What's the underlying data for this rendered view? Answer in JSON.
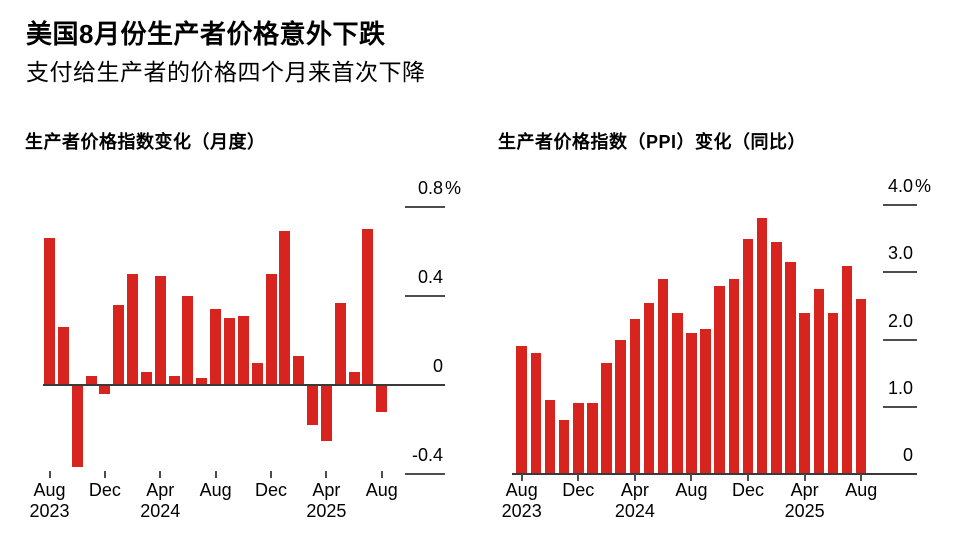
{
  "page": {
    "title": "美国8月份生产者价格意外下跌",
    "subtitle": "支付给生产者的价格四个月来首次下降"
  },
  "colors": {
    "bar_red": "#d8241f",
    "axis": "#3a3a3a",
    "grid": "#4d4d4d",
    "text": "#000000",
    "background": "#ffffff"
  },
  "chart_data": [
    {
      "type": "bar",
      "title": "生产者价格指数变化（月度）",
      "unit": "%",
      "categories": [
        "Aug 2023",
        "Sep 2023",
        "Oct 2023",
        "Nov 2023",
        "Dec 2023",
        "Jan 2024",
        "Feb 2024",
        "Mar 2024",
        "Apr 2024",
        "May 2024",
        "Jun 2024",
        "Jul 2024",
        "Aug 2024",
        "Sep 2024",
        "Oct 2024",
        "Nov 2024",
        "Dec 2024",
        "Jan 2025",
        "Feb 2025",
        "Mar 2025",
        "Apr 2025",
        "May 2025",
        "Jun 2025",
        "Jul 2025",
        "Aug 2025"
      ],
      "values": [
        0.66,
        0.26,
        -0.37,
        0.04,
        -0.04,
        0.36,
        0.5,
        0.06,
        0.49,
        0.04,
        0.4,
        0.03,
        0.34,
        0.3,
        0.31,
        0.1,
        0.5,
        0.69,
        0.13,
        -0.18,
        -0.25,
        0.37,
        0.06,
        0.7,
        -0.12
      ],
      "ylim": [
        -0.4,
        0.8
      ],
      "grid": "right-side-dashes",
      "legend": "none",
      "bar_color": "#d8241f",
      "yticks": [
        {
          "label": "0.8%",
          "value": 0.8
        },
        {
          "label": "0.4",
          "value": 0.4
        },
        {
          "label": "0",
          "value": 0
        },
        {
          "label": "-0.4",
          "value": -0.4
        }
      ],
      "xticks": [
        {
          "index": 0,
          "label": "Aug",
          "year": "2023"
        },
        {
          "index": 4,
          "label": "Dec"
        },
        {
          "index": 8,
          "label": "Apr",
          "year": "2024"
        },
        {
          "index": 12,
          "label": "Aug"
        },
        {
          "index": 16,
          "label": "Dec"
        },
        {
          "index": 20,
          "label": "Apr",
          "year": "2025"
        },
        {
          "index": 24,
          "label": "Aug"
        }
      ]
    },
    {
      "type": "bar",
      "title": "生产者价格指数（PPI）变化（同比）",
      "unit": "%",
      "categories": [
        "Aug 2023",
        "Sep 2023",
        "Oct 2023",
        "Nov 2023",
        "Dec 2023",
        "Jan 2024",
        "Feb 2024",
        "Mar 2024",
        "Apr 2024",
        "May 2024",
        "Jun 2024",
        "Jul 2024",
        "Aug 2024",
        "Sep 2024",
        "Oct 2024",
        "Nov 2024",
        "Dec 2024",
        "Jan 2025",
        "Feb 2025",
        "Mar 2025",
        "Apr 2025",
        "May 2025",
        "Jun 2025",
        "Jul 2025",
        "Aug 2025"
      ],
      "values": [
        1.9,
        1.8,
        1.1,
        0.8,
        1.05,
        1.05,
        1.65,
        2.0,
        2.3,
        2.55,
        2.9,
        2.4,
        2.1,
        2.15,
        2.8,
        2.9,
        3.5,
        3.8,
        3.45,
        3.15,
        2.4,
        2.75,
        2.4,
        3.1,
        2.6
      ],
      "ylim": [
        0,
        4.0
      ],
      "grid": "right-side-dashes",
      "legend": "none",
      "bar_color": "#d8241f",
      "yticks": [
        {
          "label": "4.0%",
          "value": 4.0
        },
        {
          "label": "3.0",
          "value": 3.0
        },
        {
          "label": "2.0",
          "value": 2.0
        },
        {
          "label": "1.0",
          "value": 1.0
        },
        {
          "label": "0",
          "value": 0
        }
      ],
      "xticks": [
        {
          "index": 0,
          "label": "Aug",
          "year": "2023"
        },
        {
          "index": 4,
          "label": "Dec"
        },
        {
          "index": 8,
          "label": "Apr",
          "year": "2024"
        },
        {
          "index": 12,
          "label": "Aug"
        },
        {
          "index": 16,
          "label": "Dec"
        },
        {
          "index": 20,
          "label": "Apr",
          "year": "2025"
        },
        {
          "index": 24,
          "label": "Aug"
        }
      ]
    }
  ]
}
